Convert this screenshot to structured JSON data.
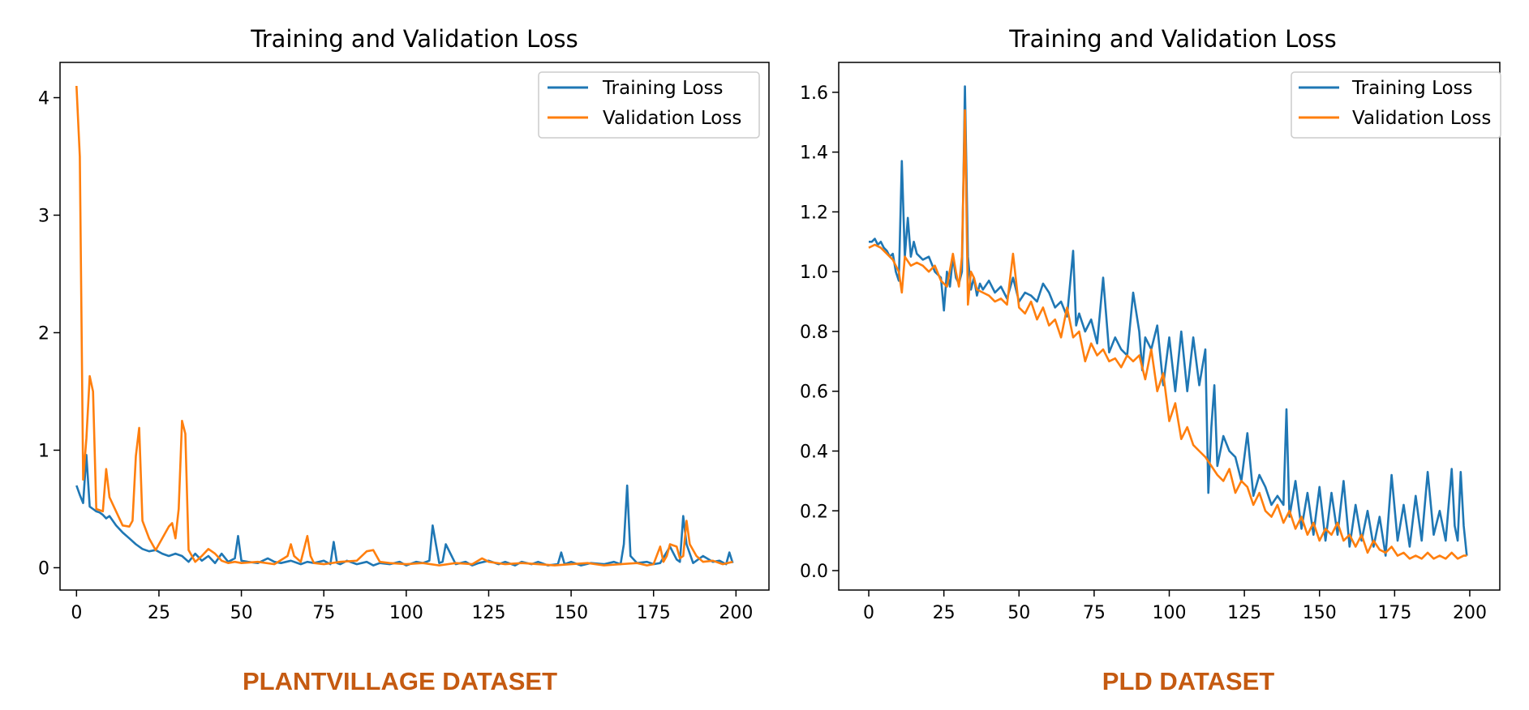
{
  "palette": {
    "training": "#1f77b4",
    "validation": "#ff7f0e",
    "caption": "#c55a11"
  },
  "chart_data": [
    {
      "type": "line",
      "title": "Training and Validation Loss",
      "caption": "PLANTVILLAGE DATASET",
      "xlabel": "",
      "ylabel": "",
      "xlim": [
        -5,
        210
      ],
      "ylim": [
        -0.19,
        4.3
      ],
      "xticks": [
        0,
        25,
        50,
        75,
        100,
        125,
        150,
        175,
        200
      ],
      "yticks": [
        0,
        1,
        2,
        3,
        4
      ],
      "xticklabels": [
        "0",
        "25",
        "50",
        "75",
        "100",
        "125",
        "150",
        "175",
        "200"
      ],
      "yticklabels": [
        "0",
        "1",
        "2",
        "3",
        "4"
      ],
      "grid": false,
      "legend": "top-right",
      "series": [
        {
          "name": "Training Loss",
          "color": "#1f77b4",
          "x": [
            0,
            1,
            2,
            3,
            4,
            5,
            6,
            7,
            8,
            9,
            10,
            12,
            14,
            16,
            18,
            20,
            22,
            24,
            26,
            28,
            30,
            32,
            34,
            36,
            38,
            40,
            42,
            44,
            46,
            48,
            49,
            50,
            52,
            55,
            58,
            60,
            62,
            65,
            68,
            70,
            72,
            75,
            77,
            78,
            79,
            80,
            82,
            85,
            88,
            90,
            92,
            95,
            98,
            100,
            103,
            105,
            107,
            108,
            109,
            110,
            111,
            112,
            115,
            118,
            120,
            122,
            125,
            128,
            130,
            133,
            135,
            138,
            140,
            143,
            146,
            147,
            148,
            150,
            153,
            156,
            160,
            163,
            165,
            166,
            167,
            168,
            170,
            173,
            175,
            177,
            180,
            182,
            183,
            184,
            185,
            187,
            190,
            193,
            195,
            197,
            198,
            199
          ],
          "y": [
            0.7,
            0.62,
            0.55,
            0.96,
            0.52,
            0.5,
            0.48,
            0.47,
            0.45,
            0.42,
            0.44,
            0.36,
            0.3,
            0.25,
            0.2,
            0.16,
            0.14,
            0.15,
            0.12,
            0.1,
            0.12,
            0.1,
            0.05,
            0.12,
            0.06,
            0.1,
            0.04,
            0.12,
            0.05,
            0.08,
            0.27,
            0.06,
            0.05,
            0.04,
            0.08,
            0.05,
            0.04,
            0.06,
            0.03,
            0.05,
            0.04,
            0.06,
            0.03,
            0.22,
            0.04,
            0.03,
            0.06,
            0.03,
            0.05,
            0.02,
            0.04,
            0.03,
            0.05,
            0.02,
            0.05,
            0.04,
            0.06,
            0.36,
            0.2,
            0.04,
            0.05,
            0.2,
            0.03,
            0.05,
            0.02,
            0.04,
            0.06,
            0.03,
            0.05,
            0.02,
            0.05,
            0.03,
            0.05,
            0.02,
            0.03,
            0.13,
            0.03,
            0.05,
            0.02,
            0.04,
            0.03,
            0.05,
            0.03,
            0.2,
            0.7,
            0.1,
            0.04,
            0.05,
            0.03,
            0.04,
            0.18,
            0.07,
            0.05,
            0.44,
            0.2,
            0.04,
            0.1,
            0.05,
            0.06,
            0.03,
            0.13,
            0.04
          ]
        },
        {
          "name": "Validation Loss",
          "color": "#ff7f0e",
          "x": [
            0,
            1,
            2,
            3,
            4,
            5,
            6,
            8,
            9,
            10,
            12,
            14,
            16,
            17,
            18,
            19,
            20,
            22,
            24,
            26,
            28,
            29,
            30,
            31,
            32,
            33,
            34,
            36,
            38,
            40,
            42,
            44,
            46,
            48,
            50,
            55,
            60,
            64,
            65,
            66,
            68,
            70,
            71,
            72,
            75,
            80,
            85,
            88,
            90,
            92,
            95,
            100,
            105,
            110,
            115,
            120,
            123,
            125,
            130,
            135,
            140,
            145,
            150,
            155,
            160,
            165,
            170,
            173,
            175,
            177,
            178,
            179,
            180,
            182,
            183,
            184,
            185,
            186,
            188,
            190,
            193,
            196,
            199
          ],
          "y": [
            4.1,
            3.5,
            0.75,
            1.1,
            1.63,
            1.5,
            0.5,
            0.48,
            0.84,
            0.6,
            0.48,
            0.36,
            0.35,
            0.4,
            0.95,
            1.19,
            0.4,
            0.25,
            0.15,
            0.25,
            0.35,
            0.38,
            0.25,
            0.5,
            1.25,
            1.14,
            0.15,
            0.05,
            0.1,
            0.16,
            0.12,
            0.06,
            0.04,
            0.05,
            0.04,
            0.05,
            0.03,
            0.1,
            0.2,
            0.1,
            0.05,
            0.27,
            0.1,
            0.04,
            0.03,
            0.05,
            0.06,
            0.14,
            0.15,
            0.05,
            0.04,
            0.03,
            0.04,
            0.02,
            0.04,
            0.03,
            0.08,
            0.05,
            0.03,
            0.04,
            0.03,
            0.02,
            0.03,
            0.04,
            0.02,
            0.03,
            0.04,
            0.02,
            0.03,
            0.18,
            0.05,
            0.1,
            0.2,
            0.18,
            0.08,
            0.1,
            0.4,
            0.2,
            0.1,
            0.05,
            0.06,
            0.03,
            0.05
          ]
        }
      ]
    },
    {
      "type": "line",
      "title": "Training and Validation Loss",
      "caption": "PLD DATASET",
      "xlabel": "",
      "ylabel": "",
      "xlim": [
        -10,
        210
      ],
      "ylim": [
        -0.065,
        1.7
      ],
      "xticks": [
        0,
        25,
        50,
        75,
        100,
        125,
        150,
        175,
        200
      ],
      "yticks": [
        0.0,
        0.2,
        0.4,
        0.6,
        0.8,
        1.0,
        1.2,
        1.4,
        1.6
      ],
      "xticklabels": [
        "0",
        "25",
        "50",
        "75",
        "100",
        "125",
        "150",
        "175",
        "200"
      ],
      "yticklabels": [
        "0.0",
        "0.2",
        "0.4",
        "0.6",
        "0.8",
        "1.0",
        "1.2",
        "1.4",
        "1.6"
      ],
      "grid": false,
      "legend": "top-right",
      "series": [
        {
          "name": "Training Loss",
          "color": "#1f77b4",
          "x": [
            0,
            1,
            2,
            3,
            4,
            5,
            6,
            7,
            8,
            9,
            10,
            11,
            12,
            13,
            14,
            15,
            16,
            18,
            20,
            22,
            24,
            25,
            26,
            27,
            28,
            29,
            30,
            31,
            32,
            33,
            34,
            35,
            36,
            37,
            38,
            40,
            42,
            44,
            46,
            48,
            50,
            52,
            54,
            56,
            58,
            60,
            62,
            64,
            66,
            68,
            69,
            70,
            72,
            74,
            76,
            78,
            80,
            82,
            84,
            86,
            88,
            90,
            91,
            92,
            94,
            96,
            98,
            100,
            102,
            104,
            106,
            108,
            110,
            112,
            113,
            114,
            115,
            116,
            118,
            120,
            122,
            124,
            126,
            128,
            130,
            132,
            134,
            136,
            138,
            139,
            140,
            142,
            144,
            146,
            148,
            150,
            152,
            154,
            156,
            158,
            160,
            162,
            164,
            166,
            168,
            170,
            172,
            174,
            176,
            178,
            180,
            182,
            184,
            186,
            188,
            190,
            192,
            194,
            195,
            196,
            197,
            198,
            199
          ],
          "y": [
            1.1,
            1.1,
            1.11,
            1.09,
            1.1,
            1.08,
            1.07,
            1.05,
            1.06,
            1.0,
            0.97,
            1.37,
            1.05,
            1.18,
            1.05,
            1.1,
            1.06,
            1.04,
            1.05,
            1.0,
            0.98,
            0.87,
            1.0,
            0.95,
            1.05,
            0.98,
            0.96,
            1.0,
            1.62,
            1.05,
            0.94,
            0.98,
            0.92,
            0.96,
            0.94,
            0.97,
            0.93,
            0.95,
            0.91,
            0.98,
            0.9,
            0.93,
            0.92,
            0.9,
            0.96,
            0.93,
            0.88,
            0.9,
            0.85,
            1.07,
            0.82,
            0.86,
            0.8,
            0.84,
            0.76,
            0.98,
            0.73,
            0.78,
            0.74,
            0.72,
            0.93,
            0.8,
            0.67,
            0.78,
            0.74,
            0.82,
            0.62,
            0.78,
            0.6,
            0.8,
            0.6,
            0.78,
            0.62,
            0.74,
            0.26,
            0.48,
            0.62,
            0.35,
            0.45,
            0.4,
            0.38,
            0.3,
            0.46,
            0.25,
            0.32,
            0.28,
            0.22,
            0.25,
            0.22,
            0.54,
            0.18,
            0.3,
            0.14,
            0.26,
            0.12,
            0.28,
            0.1,
            0.26,
            0.12,
            0.3,
            0.08,
            0.22,
            0.1,
            0.2,
            0.08,
            0.18,
            0.05,
            0.32,
            0.1,
            0.22,
            0.08,
            0.25,
            0.1,
            0.33,
            0.12,
            0.2,
            0.1,
            0.34,
            0.15,
            0.1,
            0.33,
            0.15,
            0.05
          ]
        },
        {
          "name": "Validation Loss",
          "color": "#ff7f0e",
          "x": [
            0,
            2,
            4,
            6,
            8,
            10,
            11,
            12,
            14,
            16,
            18,
            20,
            22,
            24,
            26,
            28,
            29,
            30,
            31,
            32,
            33,
            34,
            35,
            36,
            38,
            40,
            42,
            44,
            46,
            48,
            50,
            52,
            54,
            56,
            58,
            60,
            62,
            64,
            66,
            68,
            70,
            72,
            74,
            76,
            78,
            80,
            82,
            84,
            86,
            88,
            90,
            92,
            94,
            96,
            98,
            100,
            102,
            104,
            106,
            108,
            110,
            112,
            114,
            116,
            118,
            120,
            122,
            124,
            126,
            128,
            130,
            132,
            134,
            136,
            138,
            140,
            142,
            144,
            146,
            148,
            150,
            152,
            154,
            156,
            158,
            160,
            162,
            164,
            166,
            168,
            170,
            172,
            174,
            176,
            178,
            180,
            182,
            184,
            186,
            188,
            190,
            192,
            194,
            196,
            198,
            199
          ],
          "y": [
            1.08,
            1.09,
            1.08,
            1.06,
            1.04,
            1.0,
            0.93,
            1.05,
            1.02,
            1.03,
            1.02,
            1.0,
            1.02,
            0.97,
            0.95,
            1.06,
            1.0,
            0.95,
            1.05,
            1.54,
            0.89,
            1.0,
            0.98,
            0.94,
            0.93,
            0.92,
            0.9,
            0.91,
            0.89,
            1.06,
            0.88,
            0.86,
            0.9,
            0.84,
            0.88,
            0.82,
            0.84,
            0.78,
            0.88,
            0.78,
            0.8,
            0.7,
            0.76,
            0.72,
            0.74,
            0.7,
            0.71,
            0.68,
            0.72,
            0.7,
            0.72,
            0.64,
            0.74,
            0.6,
            0.66,
            0.5,
            0.56,
            0.44,
            0.48,
            0.42,
            0.4,
            0.38,
            0.35,
            0.32,
            0.3,
            0.34,
            0.26,
            0.3,
            0.28,
            0.22,
            0.26,
            0.2,
            0.18,
            0.22,
            0.16,
            0.2,
            0.14,
            0.18,
            0.12,
            0.16,
            0.1,
            0.14,
            0.12,
            0.16,
            0.1,
            0.12,
            0.08,
            0.12,
            0.06,
            0.1,
            0.07,
            0.06,
            0.08,
            0.05,
            0.06,
            0.04,
            0.05,
            0.04,
            0.06,
            0.04,
            0.05,
            0.04,
            0.06,
            0.04,
            0.05,
            0.05
          ]
        }
      ]
    }
  ]
}
